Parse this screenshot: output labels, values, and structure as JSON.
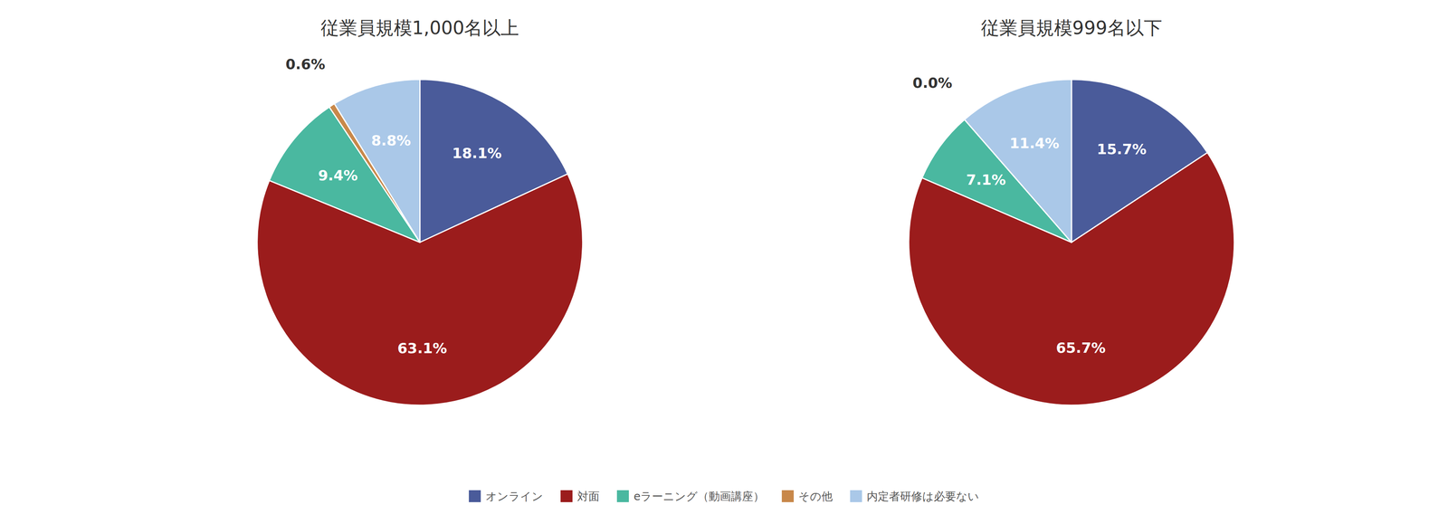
{
  "chart_data": {
    "type": "pie",
    "categories": [
      "オンライン",
      "対面",
      "eラーニング（動画講座）",
      "その他",
      "内定者研修は必要ない"
    ],
    "colors": [
      "#4a5b9a",
      "#9b1c1c",
      "#4ab8a0",
      "#c8884a",
      "#aac8e8"
    ],
    "data_labels": true,
    "series": [
      {
        "name": "従業員規模1,000名以上",
        "values": [
          18.1,
          63.1,
          9.4,
          0.6,
          8.8
        ],
        "value_labels": [
          "18.1%",
          "63.1%",
          "9.4%",
          "0.6%",
          "8.8%"
        ]
      },
      {
        "name": "従業員規模999名以下",
        "values": [
          15.7,
          65.7,
          7.1,
          0.001,
          11.4
        ],
        "value_labels": [
          "15.7%",
          "65.7%",
          "7.1%",
          "0.0%",
          "11.4%"
        ]
      }
    ]
  }
}
